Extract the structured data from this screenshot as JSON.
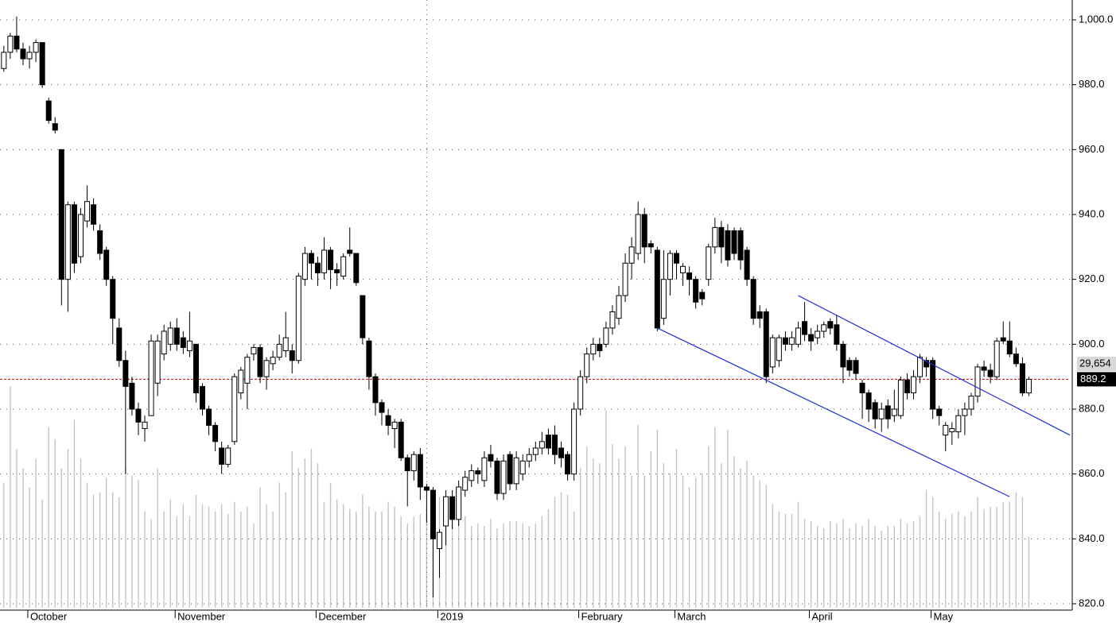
{
  "chart_data": {
    "type": "candlestick",
    "ylim": [
      820,
      1000
    ],
    "yticks": [
      {
        "value": 1000,
        "label": "1,000.0"
      },
      {
        "value": 980,
        "label": "980.0"
      },
      {
        "value": 960,
        "label": "960.0"
      },
      {
        "value": 940,
        "label": "940.0"
      },
      {
        "value": 920,
        "label": "920.0"
      },
      {
        "value": 900,
        "label": "900.0"
      },
      {
        "value": 880,
        "label": "880.0"
      },
      {
        "value": 860,
        "label": "860.0"
      },
      {
        "value": 840,
        "label": "840.0"
      },
      {
        "value": 820,
        "label": "820.0"
      }
    ],
    "xlim": [
      -0.6,
      166.4
    ],
    "xticks": [
      {
        "value": 2,
        "label": "October"
      },
      {
        "value": 25,
        "label": "November"
      },
      {
        "value": 47,
        "label": "December"
      },
      {
        "value": 66,
        "label": "2019"
      },
      {
        "value": 88,
        "label": "February"
      },
      {
        "value": 103,
        "label": "March"
      },
      {
        "value": 124,
        "label": "April"
      },
      {
        "value": 143,
        "label": "May"
      }
    ],
    "vertical_grid_at": [
      66
    ],
    "grid": true,
    "ohlc": [
      [
        985,
        992,
        984,
        990
      ],
      [
        990,
        996,
        988,
        995
      ],
      [
        995,
        1001,
        990,
        991
      ],
      [
        991,
        993,
        986,
        988
      ],
      [
        988,
        992,
        985,
        990
      ],
      [
        990,
        994,
        987,
        993
      ],
      [
        993,
        993,
        979,
        980
      ],
      [
        975,
        976,
        968,
        969
      ],
      [
        968,
        970,
        965,
        966
      ],
      [
        960,
        960,
        912,
        920
      ],
      [
        920,
        944,
        910,
        943
      ],
      [
        943,
        944,
        922,
        925
      ],
      [
        927,
        942,
        925,
        940
      ],
      [
        938,
        949,
        936,
        944
      ],
      [
        943,
        945,
        935,
        937
      ],
      [
        935,
        937,
        926,
        928
      ],
      [
        929,
        930,
        918,
        920
      ],
      [
        920,
        921,
        900,
        908
      ],
      [
        905,
        908,
        893,
        895
      ],
      [
        895,
        898,
        860,
        887
      ],
      [
        888,
        890,
        878,
        880
      ],
      [
        880,
        882,
        872,
        876
      ],
      [
        874,
        878,
        870,
        876
      ],
      [
        878,
        903,
        878,
        901
      ],
      [
        888,
        903,
        884,
        901
      ],
      [
        897,
        906,
        895,
        904
      ],
      [
        900,
        907,
        898,
        905
      ],
      [
        905,
        908,
        898,
        900
      ],
      [
        902,
        904,
        897,
        899
      ],
      [
        898,
        910,
        896,
        901
      ],
      [
        900,
        900,
        882,
        885
      ],
      [
        887,
        888,
        878,
        880
      ],
      [
        880,
        881,
        872,
        875
      ],
      [
        875,
        876,
        867,
        870
      ],
      [
        868,
        870,
        860,
        863
      ],
      [
        863,
        869,
        862,
        868
      ],
      [
        870,
        891,
        869,
        890
      ],
      [
        885,
        893,
        883,
        892
      ],
      [
        888,
        897,
        880,
        896
      ],
      [
        897,
        900,
        895,
        899
      ],
      [
        899,
        900,
        888,
        890
      ],
      [
        890,
        896,
        886,
        895
      ],
      [
        894,
        898,
        892,
        896
      ],
      [
        896,
        903,
        895,
        900
      ],
      [
        898,
        910,
        896,
        902
      ],
      [
        898,
        900,
        891,
        895
      ],
      [
        895,
        922,
        894,
        921
      ],
      [
        920,
        930,
        918,
        928
      ],
      [
        928,
        929,
        920,
        925
      ],
      [
        925,
        927,
        918,
        922
      ],
      [
        922,
        933,
        920,
        929
      ],
      [
        929,
        930,
        917,
        923
      ],
      [
        923,
        925,
        918,
        922
      ],
      [
        921,
        928,
        920,
        927
      ],
      [
        929,
        936,
        927,
        928
      ],
      [
        928,
        928,
        918,
        919
      ],
      [
        915,
        915,
        900,
        902
      ],
      [
        901,
        902,
        886,
        890
      ],
      [
        890,
        891,
        878,
        882
      ],
      [
        882,
        883,
        875,
        879
      ],
      [
        878,
        880,
        872,
        875
      ],
      [
        874,
        877,
        868,
        876
      ],
      [
        876,
        877,
        864,
        865
      ],
      [
        865,
        866,
        850,
        861
      ],
      [
        861,
        867,
        858,
        866
      ],
      [
        866,
        868,
        852,
        856
      ],
      [
        856,
        857,
        845,
        855
      ],
      [
        855,
        856,
        822,
        840
      ],
      [
        837,
        843,
        828,
        842
      ],
      [
        844,
        855,
        838,
        853
      ],
      [
        853,
        855,
        843,
        846
      ],
      [
        846,
        858,
        844,
        856
      ],
      [
        855,
        861,
        853,
        859
      ],
      [
        858,
        863,
        856,
        861
      ],
      [
        861,
        862,
        857,
        860
      ],
      [
        858,
        867,
        856,
        865
      ],
      [
        866,
        869,
        862,
        864
      ],
      [
        864,
        865,
        852,
        854
      ],
      [
        854,
        866,
        852,
        864
      ],
      [
        866,
        867,
        855,
        857
      ],
      [
        857,
        867,
        855,
        865
      ],
      [
        860,
        866,
        858,
        864
      ],
      [
        864,
        868,
        862,
        866
      ],
      [
        866,
        870,
        864,
        868
      ],
      [
        868,
        873,
        866,
        870
      ],
      [
        872,
        874,
        866,
        868
      ],
      [
        872,
        875,
        863,
        866
      ],
      [
        868,
        870,
        862,
        865
      ],
      [
        866,
        867,
        858,
        860
      ],
      [
        860,
        882,
        858,
        880
      ],
      [
        880,
        892,
        878,
        890
      ],
      [
        890,
        899,
        888,
        897
      ],
      [
        897,
        902,
        895,
        900
      ],
      [
        900,
        902,
        896,
        898
      ],
      [
        900,
        907,
        899,
        905
      ],
      [
        905,
        912,
        903,
        910
      ],
      [
        908,
        918,
        906,
        915
      ],
      [
        915,
        928,
        913,
        925
      ],
      [
        925,
        933,
        920,
        930
      ],
      [
        928,
        944,
        926,
        940
      ],
      [
        940,
        942,
        925,
        930
      ],
      [
        931,
        932,
        928,
        930
      ],
      [
        929,
        930,
        904,
        905
      ],
      [
        908,
        929,
        906,
        920
      ],
      [
        920,
        929,
        915,
        928
      ],
      [
        928,
        929,
        920,
        925
      ],
      [
        922,
        925,
        918,
        924
      ],
      [
        922,
        924,
        915,
        920
      ],
      [
        920,
        921,
        911,
        913
      ],
      [
        916,
        917,
        912,
        914
      ],
      [
        920,
        931,
        918,
        930
      ],
      [
        930,
        939,
        928,
        936
      ],
      [
        936,
        938,
        925,
        930
      ],
      [
        935,
        937,
        924,
        926
      ],
      [
        935,
        936,
        926,
        928
      ],
      [
        935,
        936,
        923,
        926
      ],
      [
        929,
        930,
        918,
        920
      ],
      [
        920,
        921,
        906,
        908
      ],
      [
        910,
        912,
        905,
        908
      ],
      [
        910,
        911,
        888,
        890
      ],
      [
        893,
        903,
        891,
        902
      ],
      [
        895,
        903,
        893,
        902
      ],
      [
        902,
        904,
        898,
        900
      ],
      [
        900,
        904,
        898,
        902
      ],
      [
        900,
        907,
        899,
        905
      ],
      [
        907,
        913,
        901,
        903
      ],
      [
        903,
        905,
        898,
        901
      ],
      [
        902,
        906,
        900,
        904
      ],
      [
        904,
        907,
        902,
        906
      ],
      [
        907,
        908,
        903,
        905
      ],
      [
        906,
        909,
        898,
        900
      ],
      [
        900,
        901,
        888,
        893
      ],
      [
        895,
        896,
        890,
        892
      ],
      [
        895,
        896,
        889,
        891
      ],
      [
        888,
        889,
        877,
        885
      ],
      [
        885,
        886,
        876,
        880
      ],
      [
        882,
        883,
        874,
        877
      ],
      [
        877,
        882,
        873,
        880
      ],
      [
        881,
        883,
        874,
        877
      ],
      [
        878,
        886,
        876,
        880
      ],
      [
        878,
        890,
        877,
        889
      ],
      [
        889,
        891,
        883,
        885
      ],
      [
        885,
        892,
        883,
        890
      ],
      [
        890,
        897,
        888,
        896
      ],
      [
        895,
        896,
        890,
        893
      ],
      [
        895,
        896,
        877,
        880
      ],
      [
        880,
        881,
        875,
        878
      ],
      [
        872,
        876,
        867,
        875
      ],
      [
        873,
        876,
        869,
        874
      ],
      [
        873,
        880,
        871,
        878
      ],
      [
        878,
        882,
        872,
        880
      ],
      [
        880,
        885,
        878,
        884
      ],
      [
        884,
        894,
        882,
        893
      ],
      [
        893,
        895,
        890,
        892
      ],
      [
        892,
        894,
        888,
        890
      ],
      [
        890,
        902,
        889,
        901
      ],
      [
        902,
        907,
        900,
        901
      ],
      [
        901,
        907,
        896,
        897
      ],
      [
        897,
        899,
        893,
        894
      ],
      [
        894,
        896,
        884,
        885
      ],
      [
        885,
        890,
        884,
        889.2
      ]
    ],
    "volume": [
      52000,
      92000,
      66000,
      58000,
      50000,
      62000,
      45000,
      75000,
      70000,
      58000,
      66000,
      78000,
      62000,
      52000,
      47000,
      48000,
      54000,
      48000,
      46000,
      58000,
      55000,
      53000,
      40000,
      37000,
      58000,
      40000,
      45000,
      38000,
      43000,
      38000,
      47000,
      43000,
      42000,
      40000,
      43000,
      39000,
      44000,
      40000,
      42000,
      35000,
      50000,
      43000,
      40000,
      52000,
      48000,
      65000,
      58000,
      62000,
      66000,
      60000,
      44000,
      52000,
      45000,
      43000,
      41000,
      40000,
      47000,
      42000,
      40000,
      40000,
      44000,
      42000,
      38000,
      35000,
      38000,
      39000,
      42000,
      48000,
      46000,
      40000,
      37000,
      36000,
      38000,
      34000,
      35000,
      34000,
      37000,
      33000,
      35000,
      36000,
      36000,
      35000,
      34000,
      35000,
      38000,
      41000,
      46000,
      48000,
      47000,
      40000,
      58000,
      67000,
      62000,
      60000,
      82000,
      68000,
      62000,
      67000,
      55000,
      76000,
      55000,
      65000,
      74000,
      60000,
      56000,
      66000,
      55000,
      50000,
      54000,
      56000,
      67000,
      75000,
      60000,
      74000,
      63000,
      58000,
      61000,
      55000,
      53000,
      51000,
      43000,
      40000,
      39000,
      39000,
      44000,
      37000,
      36000,
      34000,
      33000,
      36000,
      35000,
      37000,
      33000,
      35000,
      34000,
      37000,
      34000,
      32000,
      34000,
      34000,
      37000,
      35000,
      36000,
      38000,
      49000,
      46000,
      40000,
      37000,
      39000,
      40000,
      38000,
      40000,
      46000,
      41000,
      42000,
      42000,
      44000,
      44000,
      48000,
      46000,
      29654
    ],
    "volume_label": "29,654",
    "volume_lim": [
      0,
      100000
    ],
    "last_line_color": "#cc0000",
    "trendlines": [
      {
        "x": [
          102,
          157
        ],
        "y": [
          905,
          853
        ]
      },
      {
        "x": [
          124,
          166.4
        ],
        "y": [
          915,
          872
        ]
      }
    ],
    "trendline_color": "#1f2fd6"
  }
}
